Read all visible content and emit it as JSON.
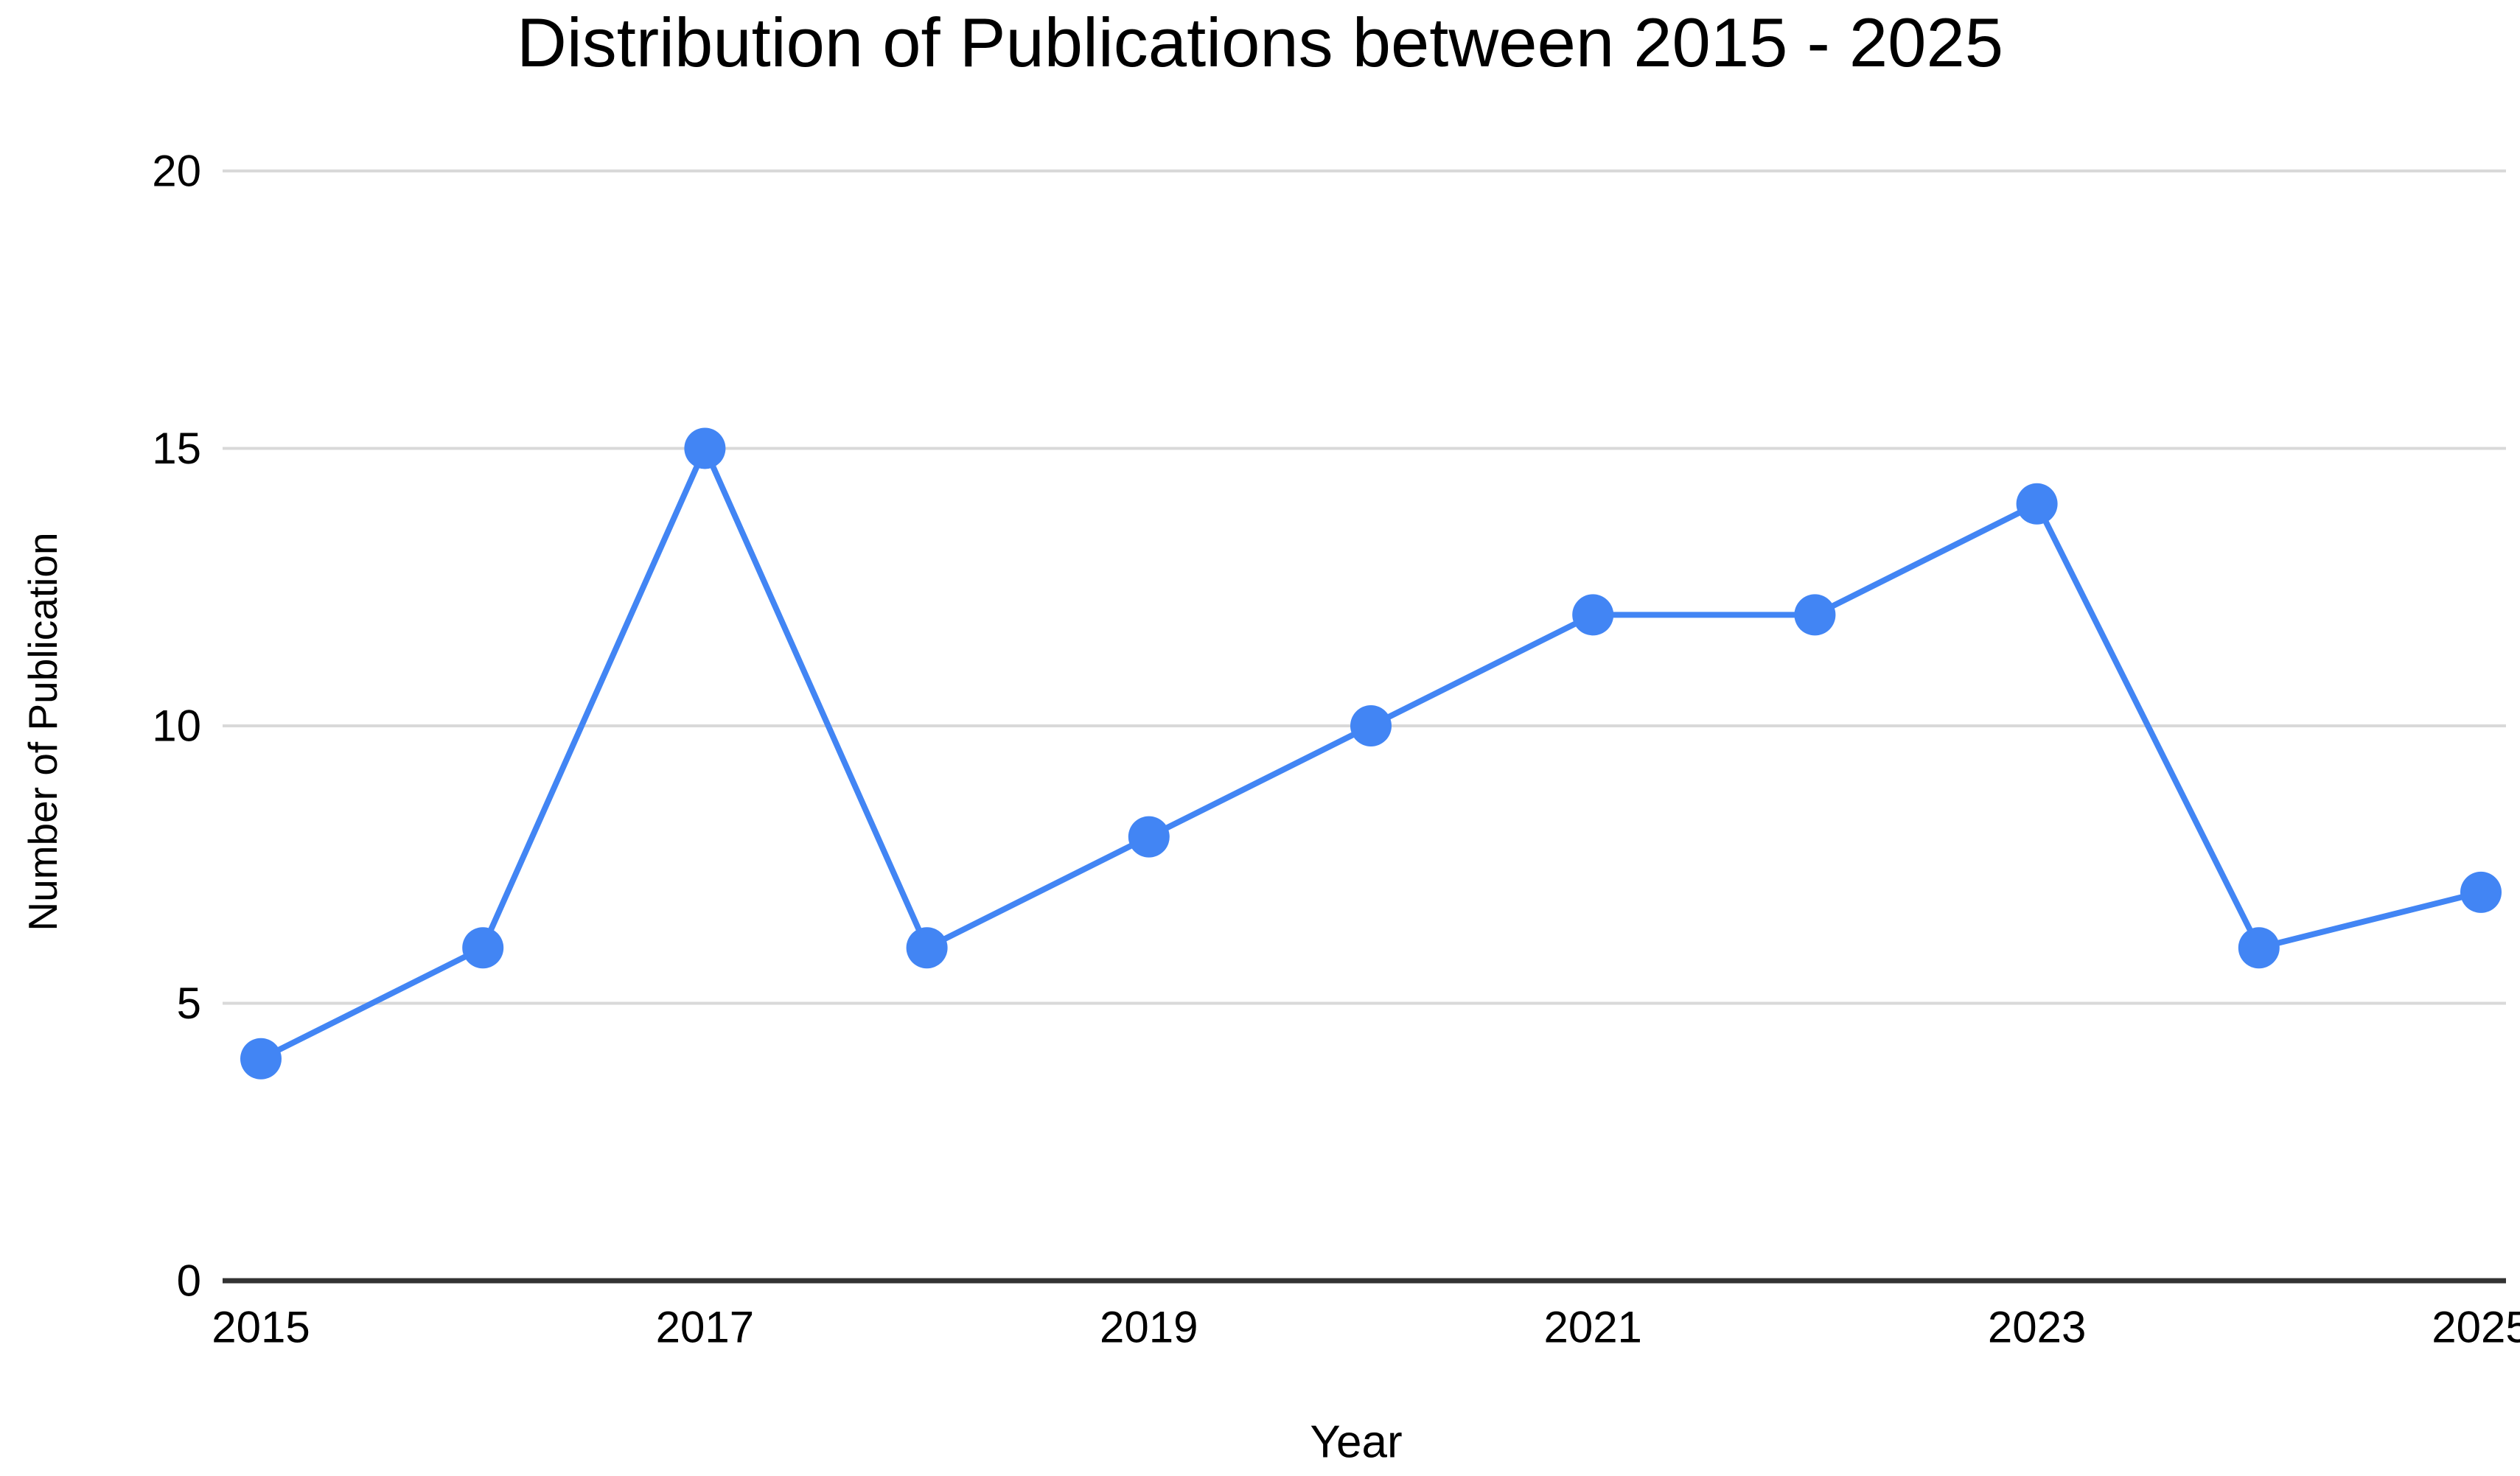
{
  "page": {
    "background": "#ffffff"
  },
  "colors": {
    "series": "#4285f4",
    "gridline": "#d9d9d9",
    "axis_line": "#333333",
    "text": "#000000"
  },
  "chart_data": {
    "type": "line",
    "title": "Distribution of Publications between 2015 - 2025",
    "xlabel": "Year",
    "ylabel": "Number of Publication",
    "x": [
      2015,
      2016,
      2017,
      2018,
      2019,
      2020,
      2021,
      2022,
      2023,
      2024,
      2025
    ],
    "values": [
      4,
      6,
      15,
      6,
      8,
      10,
      12,
      12,
      14,
      6,
      7
    ],
    "series_name": "Number of Publication",
    "ylim": [
      0,
      20
    ],
    "yticks": [
      0,
      5,
      10,
      15,
      20
    ],
    "x_tick_labels": [
      2015,
      2017,
      2019,
      2021,
      2023,
      2025
    ],
    "grid": "horizontal",
    "legend": "none",
    "marker": "circle",
    "line_color": "#4285f4",
    "point_color": "#4285f4"
  }
}
